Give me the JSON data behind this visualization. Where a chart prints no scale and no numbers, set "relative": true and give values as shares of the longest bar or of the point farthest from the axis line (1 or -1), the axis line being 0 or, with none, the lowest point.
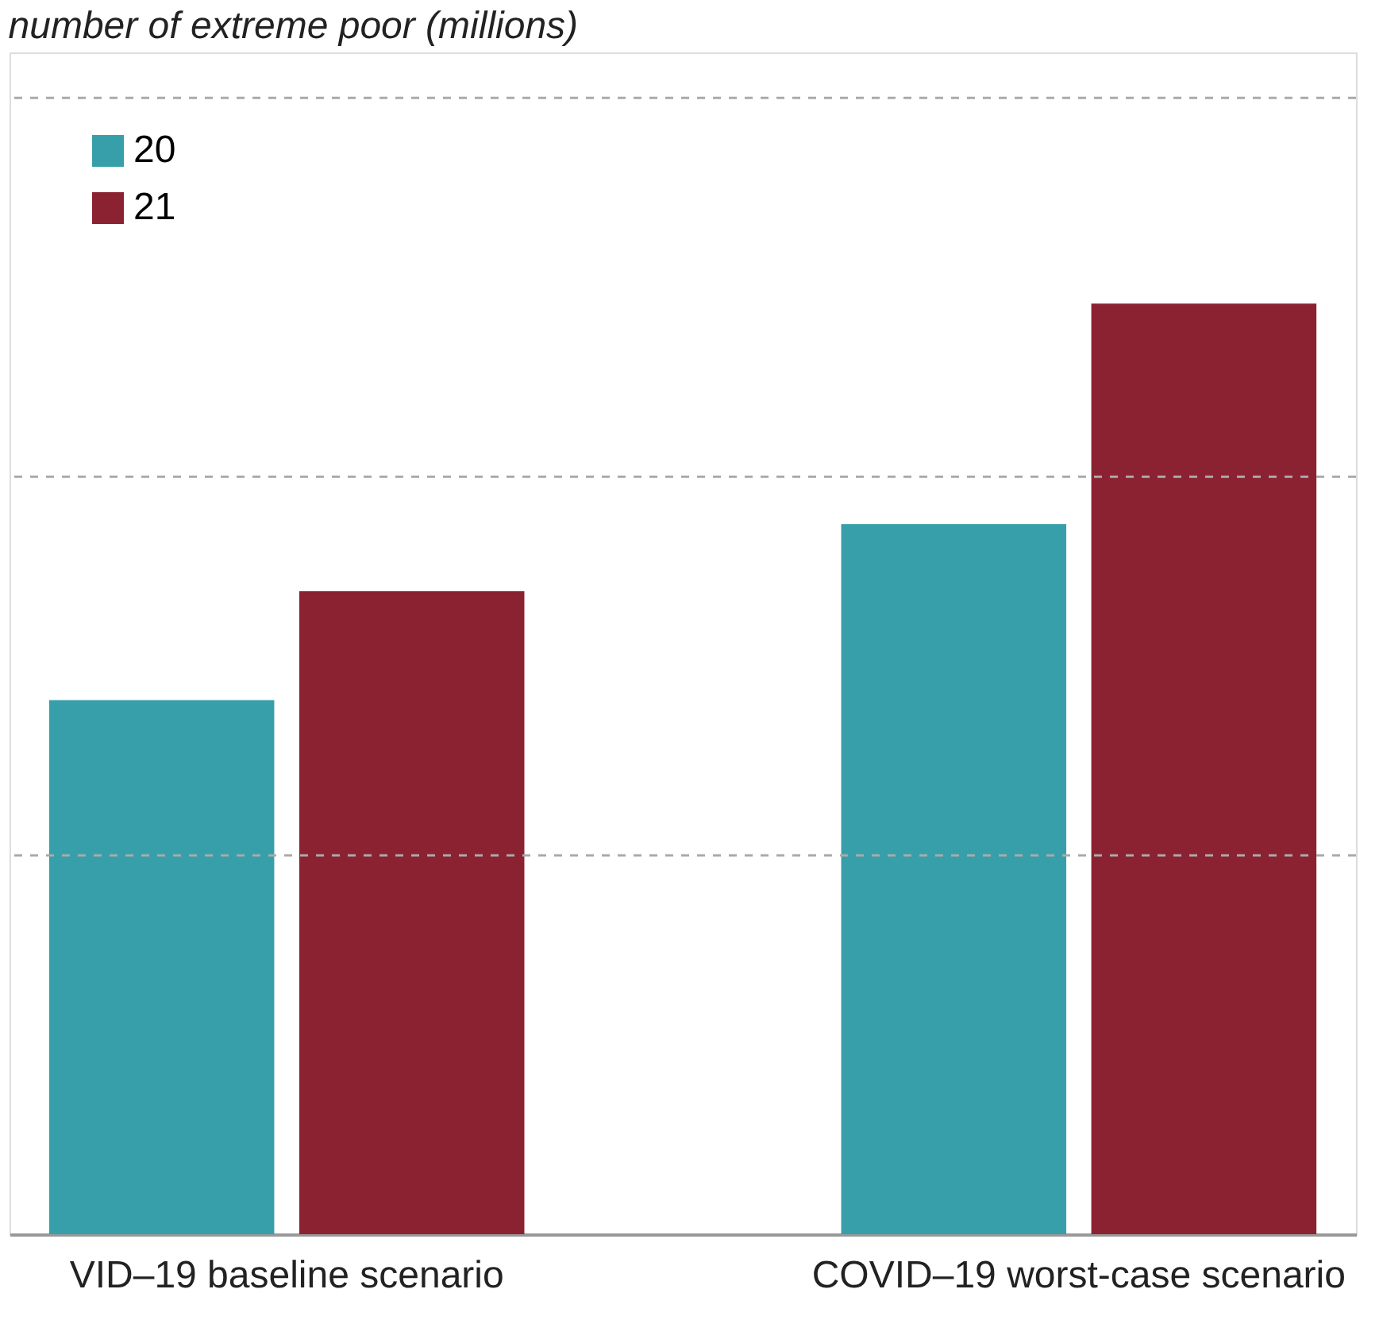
{
  "chart_data": {
    "type": "bar",
    "title": "number of extreme poor (millions)",
    "categories": [
      "VID–19 baseline scenario",
      "COVID–19 worst-case scenario"
    ],
    "relative": true,
    "legend": "top left",
    "series": [
      {
        "name": "20",
        "color": "#379fa9",
        "values": [
          0.574,
          0.763
        ]
      },
      {
        "name": "21",
        "color": "#8b2232",
        "values": [
          0.691,
          1
        ]
      }
    ],
    "ref_lines": [
      {
        "axis": "y",
        "value": 0.407,
        "color": "#aaaaaa",
        "line_style": "dashed"
      },
      {
        "axis": "y",
        "value": 0.814,
        "color": "#aaaaaa",
        "line_style": "dashed"
      },
      {
        "axis": "y",
        "value": 1.221,
        "color": "#aaaaaa",
        "line_style": "dashed"
      }
    ]
  }
}
